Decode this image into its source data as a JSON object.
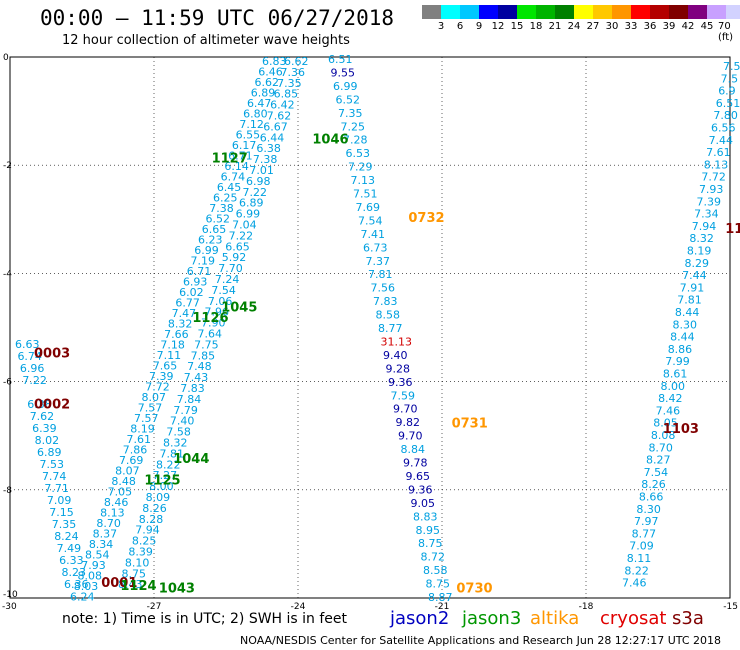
{
  "header": {
    "title": "00:00 – 11:59 UTC 06/27/2018",
    "subtitle": "12 hour collection of altimeter wave heights"
  },
  "legend": {
    "colors": [
      "#808080",
      "#00ffff",
      "#00c8ff",
      "#0000ff",
      "#0000a0",
      "#00e600",
      "#00b400",
      "#008000",
      "#ffff00",
      "#ffc800",
      "#ff9600",
      "#ff0000",
      "#b40000",
      "#800000",
      "#800080",
      "#c8a0ff",
      "#d2d2ff",
      "#000000"
    ],
    "labels": [
      "3",
      "6",
      "9",
      "12",
      "15",
      "18",
      "21",
      "24",
      "27",
      "30",
      "33",
      "36",
      "39",
      "42",
      "45",
      "70 (ft)"
    ]
  },
  "axes": {
    "lon_labels": [
      "-30",
      "-27",
      "-24",
      "-21",
      "-18",
      "-15"
    ],
    "lat_labels": [
      "0",
      "-2",
      "-4",
      "-6",
      "-8",
      "-10"
    ]
  },
  "map_colors": {
    "light_blue": "#00a0e0",
    "dark_blue": "#0000a0",
    "green": "#008000",
    "orange": "#ff9600",
    "red": "#d20000",
    "maroon": "#800000"
  },
  "tracks": [
    {
      "name": "jason3-east-1",
      "color": "#00a0e0",
      "start_row": 0,
      "values": [
        "6.62",
        "7.36",
        "7.35",
        "6.85",
        "6.42",
        "7.62",
        "6.67",
        "6.44",
        "6.38",
        "7.38",
        "7.01",
        "6.98",
        "7.22",
        "6.89",
        "6.99",
        "7.04",
        "7.22",
        "6.65",
        "5.92",
        "7.70",
        "7.24",
        "7.54",
        "7.06",
        "7.96",
        "7.90",
        "7.64",
        "7.75",
        "7.85",
        "7.48",
        "7.43",
        "7.83",
        "7.84",
        "7.79",
        "7.40",
        "7.58",
        "8.32",
        "7.81",
        "8.22",
        "7.27",
        "8.00",
        "8.09",
        "8.26",
        "8.28",
        "7.94",
        "8.25",
        "8.39",
        "8.10",
        "8.75",
        "8.43"
      ]
    },
    {
      "name": "jason3-west-1",
      "color": "#00a0e0",
      "start_row": 0,
      "values": [
        "6.83",
        "6.46",
        "6.62",
        "6.89",
        "6.47",
        "6.80",
        "7.12",
        "6.55",
        "6.17",
        "6.71",
        "6.14",
        "6.74",
        "6.45",
        "6.25",
        "7.38",
        "6.52",
        "6.65",
        "6.23",
        "6.99",
        "7.19",
        "6.71",
        "6.93",
        "6.02",
        "6.77",
        "7.47",
        "8.32",
        "7.66",
        "7.18",
        "7.11",
        "7.65",
        "7.39",
        "7.72",
        "8.07",
        "7.57",
        "7.57",
        "8.19",
        "7.61",
        "7.86",
        "7.69",
        "8.07",
        "8.48",
        "7.05",
        "8.46",
        "8.13",
        "8.70",
        "8.37",
        "8.34",
        "8.54",
        "7.93",
        "8.08",
        "8.03",
        "6.24"
      ]
    },
    {
      "name": "jason3-west-2",
      "color": "#00a0e0",
      "start_row": 27,
      "values": [
        "6.63",
        "6.74",
        "6.96",
        "7.22",
        "",
        "6.38",
        "7.62",
        "6.39",
        "8.02",
        "6.89",
        "7.53",
        "7.74",
        "7.71",
        "7.09",
        "7.15",
        "7.35",
        "8.24",
        "7.49",
        "6.33",
        "8.23",
        "6.36"
      ]
    },
    {
      "name": "altika-1",
      "color": "#00a0e0",
      "start_row": 0,
      "values": [
        "6.51",
        "9.55",
        "6.99",
        "6.52",
        "7.35",
        "7.25",
        "7.28",
        "6.53",
        "7.29",
        "7.13",
        "7.51",
        "7.69",
        "7.54",
        "7.41",
        "6.73",
        "7.37",
        "7.81",
        "7.56",
        "7.83",
        "8.58",
        "8.77",
        "31.13",
        "9.40",
        "9.28",
        "9.36",
        "7.59",
        "9.70",
        "9.82",
        "9.70",
        "8.84",
        "9.78",
        "9.65",
        "9.36",
        "9.05",
        "8.83",
        "8.95",
        "8.75",
        "8.72",
        "8.58",
        "8.75",
        "8.87"
      ]
    },
    {
      "name": "cryosat-1",
      "color": "#00a0e0",
      "start_row": 0,
      "values": [
        "7.5",
        "7.5",
        "6.9",
        "6.51",
        "7.80",
        "6.56",
        "7.44",
        "7.61",
        "8.13",
        "7.72",
        "7.93",
        "7.39",
        "7.34",
        "7.94",
        "8.32",
        "8.19",
        "8.29",
        "7.44",
        "7.91",
        "7.81",
        "8.44",
        "8.30",
        "8.44",
        "8.86",
        "7.99",
        "8.61",
        "8.00",
        "8.42",
        "7.46",
        "8.05",
        "8.08",
        "8.70",
        "8.27",
        "7.54",
        "8.26",
        "8.66",
        "8.30",
        "7.97",
        "8.77",
        "7.09",
        "8.11",
        "8.22",
        "7.46"
      ]
    }
  ],
  "time_tags": [
    {
      "text": "1127",
      "color": "#008000",
      "lon": -25.8,
      "lat": -1.95
    },
    {
      "text": "1046",
      "color": "#008000",
      "lon": -23.7,
      "lat": -1.6
    },
    {
      "text": "0732",
      "color": "#ff9600",
      "lon": -21.7,
      "lat": -3.05
    },
    {
      "text": "11",
      "color": "#800000",
      "lon": -15.1,
      "lat": -3.25
    },
    {
      "text": "1045",
      "color": "#008000",
      "lon": -25.6,
      "lat": -4.7
    },
    {
      "text": "1126",
      "color": "#008000",
      "lon": -26.2,
      "lat": -4.9
    },
    {
      "text": "0003",
      "color": "#800000",
      "lon": -29.5,
      "lat": -5.55
    },
    {
      "text": "0002",
      "color": "#800000",
      "lon": -29.5,
      "lat": -6.5
    },
    {
      "text": "0731",
      "color": "#ff9600",
      "lon": -20.8,
      "lat": -6.85
    },
    {
      "text": "1103",
      "color": "#800000",
      "lon": -16.4,
      "lat": -6.95
    },
    {
      "text": "1044",
      "color": "#008000",
      "lon": -26.6,
      "lat": -7.5
    },
    {
      "text": "1125",
      "color": "#008000",
      "lon": -27.2,
      "lat": -7.9
    },
    {
      "text": "0001",
      "color": "#800000",
      "lon": -28.1,
      "lat": -9.8
    },
    {
      "text": "1124",
      "color": "#008000",
      "lon": -27.7,
      "lat": -9.85
    },
    {
      "text": "1043",
      "color": "#008000",
      "lon": -26.9,
      "lat": -9.9
    },
    {
      "text": "0730",
      "color": "#ff9600",
      "lon": -20.7,
      "lat": -9.9
    }
  ],
  "footer": {
    "note": "note:  1) Time is in UTC;  2) SWH is in feet",
    "missions": [
      {
        "name": "jason2",
        "color": "#0000c0"
      },
      {
        "name": "jason3",
        "color": "#009600"
      },
      {
        "name": "altika",
        "color": "#ff9600"
      },
      {
        "name": "cryosat",
        "color": "#e00000"
      },
      {
        "name": "s3a",
        "color": "#800000"
      }
    ],
    "credit": "NOAA/NESDIS Center for Satellite Applications and Research      Jun 28 12:27:17 UTC 2018"
  }
}
